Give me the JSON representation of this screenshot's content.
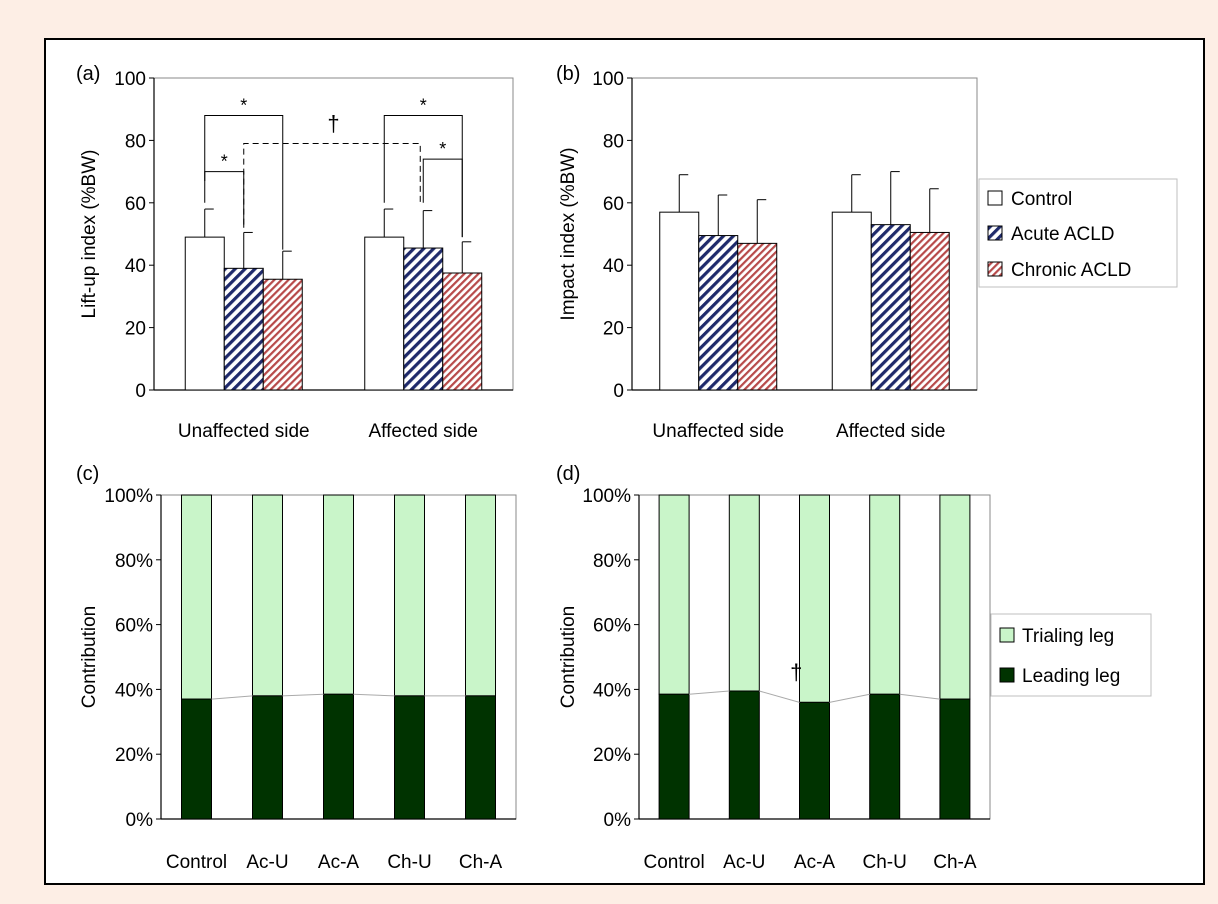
{
  "colors": {
    "background": "#fdeee5",
    "control_fill": "#ffffff",
    "acute_stripe": "#1f2a6b",
    "chronic_stripe": "#b74a4a",
    "trailing_fill": "#c9f5c9",
    "leading_fill": "#003300",
    "significance_star": "#e00000",
    "significance_dagger": "#6a1b8a",
    "connector_line": "#aaaaaa"
  },
  "legend_bar": {
    "entries": [
      "Control",
      "Acute ACLD",
      "Chronic ACLD"
    ]
  },
  "legend_stack": {
    "entries": [
      "Trialing leg",
      "Leading leg"
    ]
  },
  "chart_data": [
    {
      "panel_label": "(a)",
      "type": "bar",
      "ylabel": "Lift-up index (%BW)",
      "ylim": [
        0,
        100
      ],
      "yticks": [
        "0",
        "20",
        "40",
        "60",
        "80",
        "100"
      ],
      "categories": [
        "Unaffected side",
        "Affected side"
      ],
      "series": [
        {
          "name": "Control",
          "values": [
            49,
            49
          ],
          "error": [
            9,
            9
          ]
        },
        {
          "name": "Acute ACLD",
          "values": [
            39,
            45.5
          ],
          "error": [
            11.5,
            12
          ]
        },
        {
          "name": "Chronic ACLD",
          "values": [
            35.5,
            37.5
          ],
          "error": [
            9,
            10
          ]
        }
      ],
      "annotations": {
        "stars": [
          "*",
          "*",
          "*",
          "*"
        ],
        "dagger": "†"
      }
    },
    {
      "panel_label": "(b)",
      "type": "bar",
      "ylabel": "Impact index (%BW)",
      "ylim": [
        0,
        100
      ],
      "yticks": [
        "0",
        "20",
        "40",
        "60",
        "80",
        "100"
      ],
      "categories": [
        "Unaffected side",
        "Affected side"
      ],
      "series": [
        {
          "name": "Control",
          "values": [
            57,
            57
          ],
          "error": [
            12,
            12
          ]
        },
        {
          "name": "Acute ACLD",
          "values": [
            49.5,
            53
          ],
          "error": [
            13,
            17
          ]
        },
        {
          "name": "Chronic ACLD",
          "values": [
            47,
            50.5
          ],
          "error": [
            14,
            14
          ]
        }
      ]
    },
    {
      "panel_label": "(c)",
      "type": "bar",
      "stacked": true,
      "ylabel": "Contribution",
      "ylim": [
        0,
        100
      ],
      "yticks": [
        "0%",
        "20%",
        "40%",
        "60%",
        "80%",
        "100%"
      ],
      "categories": [
        "Control",
        "Ac-U",
        "Ac-A",
        "Ch-U",
        "Ch-A"
      ],
      "series": [
        {
          "name": "Leading leg",
          "values": [
            37,
            38,
            38.5,
            38,
            38
          ]
        },
        {
          "name": "Trialing leg",
          "values": [
            63,
            62,
            61.5,
            62,
            62
          ]
        }
      ]
    },
    {
      "panel_label": "(d)",
      "type": "bar",
      "stacked": true,
      "ylabel": "Contribution",
      "ylim": [
        0,
        100
      ],
      "yticks": [
        "0%",
        "20%",
        "40%",
        "60%",
        "80%",
        "100%"
      ],
      "categories": [
        "Control",
        "Ac-U",
        "Ac-A",
        "Ch-U",
        "Ch-A"
      ],
      "series": [
        {
          "name": "Leading leg",
          "values": [
            38.5,
            39.5,
            36,
            38.5,
            37
          ]
        },
        {
          "name": "Trialing leg",
          "values": [
            61.5,
            60.5,
            64,
            61.5,
            63
          ]
        }
      ],
      "annotations": {
        "dagger": "†"
      }
    }
  ]
}
